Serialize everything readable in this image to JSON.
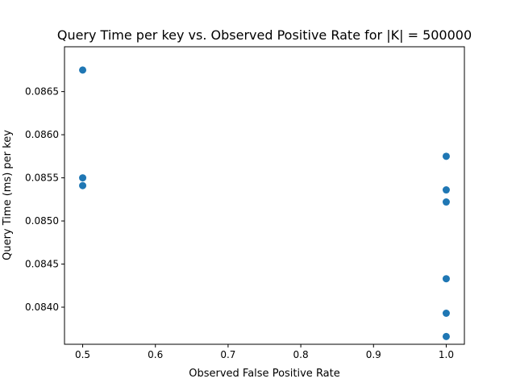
{
  "chart_data": {
    "type": "scatter",
    "title": "Query Time per key vs. Observed Positive Rate for |K| = 500000",
    "xlabel": "Observed False Positive Rate",
    "ylabel": "Query Time (ms) per key",
    "xlim": [
      0.475,
      1.025
    ],
    "ylim": [
      0.08357,
      0.08702
    ],
    "xticks": [
      0.5,
      0.6,
      0.7,
      0.8,
      0.9,
      1.0
    ],
    "xtick_labels": [
      "0.5",
      "0.6",
      "0.7",
      "0.8",
      "0.9",
      "1.0"
    ],
    "yticks": [
      0.084,
      0.0845,
      0.085,
      0.0855,
      0.086,
      0.0865
    ],
    "ytick_labels": [
      "0.0840",
      "0.0845",
      "0.0850",
      "0.0855",
      "0.0860",
      "0.0865"
    ],
    "grid": false,
    "legend": "none",
    "marker_color": "#1f77b4",
    "points": [
      {
        "x": 0.5,
        "y": 0.08675
      },
      {
        "x": 0.5,
        "y": 0.0855
      },
      {
        "x": 0.5,
        "y": 0.08541
      },
      {
        "x": 1.0,
        "y": 0.08575
      },
      {
        "x": 1.0,
        "y": 0.08536
      },
      {
        "x": 1.0,
        "y": 0.08522
      },
      {
        "x": 1.0,
        "y": 0.08433
      },
      {
        "x": 1.0,
        "y": 0.08393
      },
      {
        "x": 1.0,
        "y": 0.08366
      }
    ]
  }
}
